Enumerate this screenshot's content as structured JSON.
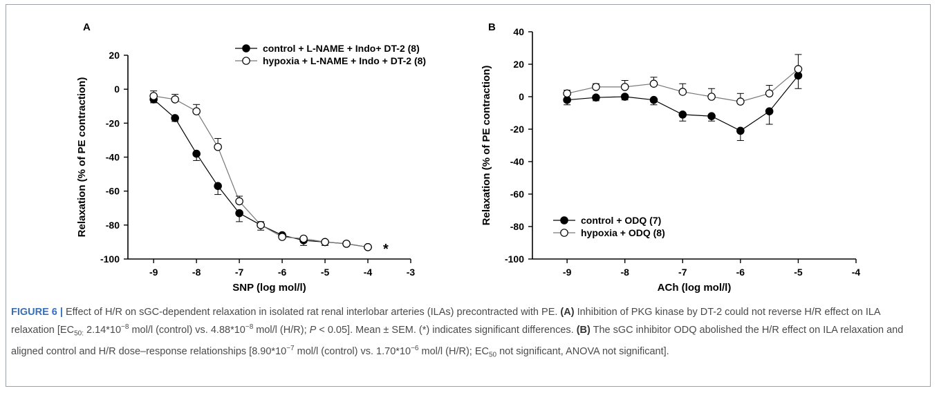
{
  "chart_data": [
    {
      "type": "line",
      "panel_label": "A",
      "xlabel": "SNP (log mol/l)",
      "ylabel": "Relaxation (% of PE contraction)",
      "xlim": [
        -9.6,
        -3
      ],
      "ylim": [
        -100,
        20
      ],
      "xticks": [
        -9,
        -8,
        -7,
        -6,
        -5,
        -4,
        -3
      ],
      "yticks": [
        20,
        0,
        -20,
        -40,
        -60,
        -80,
        -100
      ],
      "legend_position": "top-right",
      "annotation": "*",
      "series": [
        {
          "name": "control + L-NAME + Indo+ DT-2 (8)",
          "marker": "filled-circle",
          "x": [
            -9,
            -8.5,
            -8,
            -7.5,
            -7,
            -6.5,
            -6,
            -5.5,
            -5,
            -4.5,
            -4
          ],
          "y": [
            -6,
            -17,
            -38,
            -57,
            -73,
            -80,
            -86,
            -89,
            -90,
            -91,
            -93
          ],
          "err": [
            2,
            2,
            4,
            5,
            5,
            3,
            2,
            3,
            2,
            1,
            1
          ]
        },
        {
          "name": "hypoxia + L-NAME + Indo + DT-2 (8)",
          "marker": "open-circle",
          "x": [
            -9,
            -8.5,
            -8,
            -7.5,
            -7,
            -6.5,
            -6,
            -5.5,
            -5,
            -4.5,
            -4
          ],
          "y": [
            -4,
            -6,
            -13,
            -34,
            -66,
            -80,
            -87,
            -88,
            -90,
            -91,
            -93
          ],
          "err": [
            3,
            3,
            4,
            5,
            3,
            2,
            1,
            1,
            1,
            1,
            1
          ]
        }
      ]
    },
    {
      "type": "line",
      "panel_label": "B",
      "xlabel": "ACh (log mol/l)",
      "ylabel": "Relaxation (% of PE contraction)",
      "xlim": [
        -9.6,
        -4
      ],
      "ylim": [
        -100,
        40
      ],
      "xticks": [
        -9,
        -8,
        -7,
        -6,
        -5,
        -4
      ],
      "yticks": [
        40,
        20,
        0,
        -20,
        -40,
        -60,
        -80,
        -100
      ],
      "legend_position": "bottom-left",
      "series": [
        {
          "name": "control + ODQ (7)",
          "marker": "filled-circle",
          "x": [
            -9,
            -8.5,
            -8,
            -7.5,
            -7,
            -6.5,
            -6,
            -5.5,
            -5
          ],
          "y": [
            -2,
            -0.5,
            0,
            -2,
            -11,
            -12,
            -21,
            -9,
            13
          ],
          "err": [
            3,
            2,
            2,
            3,
            4,
            3,
            6,
            8,
            8
          ]
        },
        {
          "name": "hypoxia + ODQ (8)",
          "marker": "open-circle",
          "x": [
            -9,
            -8.5,
            -8,
            -7.5,
            -7,
            -6.5,
            -6,
            -5.5,
            -5
          ],
          "y": [
            2,
            6,
            6,
            8,
            3,
            0,
            -3,
            2,
            17
          ],
          "err": [
            2,
            2,
            4,
            4,
            5,
            5,
            5,
            5,
            9
          ]
        }
      ]
    }
  ],
  "caption": {
    "label": "FIGURE 6 |",
    "text1": " Effect of H/R on sGC-dependent relaxation in isolated rat renal interlobar arteries (ILAs) precontracted with PE. ",
    "bA": "(A)",
    "text2": " Inhibition of PKG kinase by DT-2 could not reverse H/R effect on ILA relaxation [EC",
    "sub50a": "50:",
    "text3": " 2.14*10",
    "sup1": "−8",
    "text4": " mol/l (control) vs. 4.88*10",
    "sup2": "−8",
    "text5": " mol/l (H/R); ",
    "pItalic": "P",
    "text6": " < 0.05]. Mean ± SEM. (*) indicates significant differences. ",
    "bB": "(B)",
    "text7": " The sGC inhibitor ODQ abolished the H/R effect on ILA relaxation and aligned control and H/R dose–response relationships [8.90*10",
    "sup3": "−7",
    "text8": " mol/l (control) vs. 1.70*10",
    "sup4": "−6",
    "text9": " mol/l (H/R); EC",
    "sub50b": "50",
    "text10": " not significant, ANOVA not significant]."
  }
}
